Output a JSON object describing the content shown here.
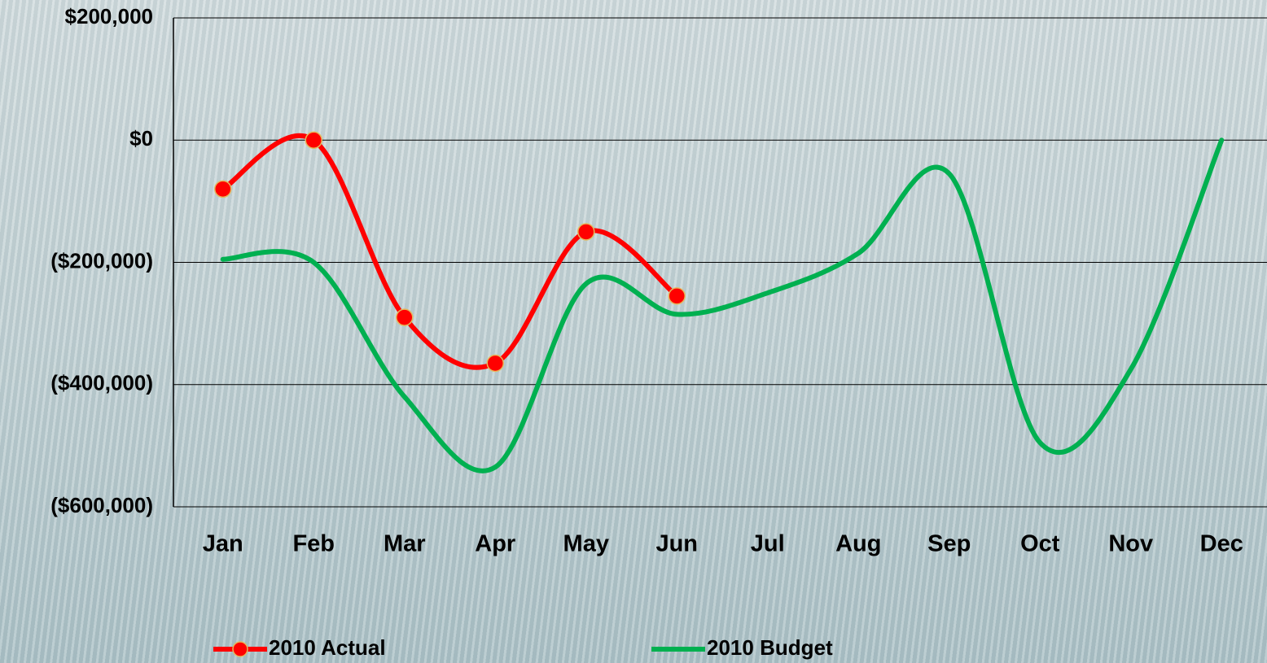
{
  "chart_data": {
    "type": "line",
    "categories": [
      "Jan",
      "Feb",
      "Mar",
      "Apr",
      "May",
      "Jun",
      "Jul",
      "Aug",
      "Sep",
      "Oct",
      "Nov",
      "Dec"
    ],
    "series": [
      {
        "name": "2010 Actual",
        "color": "#ff0000",
        "values": [
          -80000,
          0,
          -290000,
          -365000,
          -150000,
          -255000,
          null,
          null,
          null,
          null,
          null,
          null
        ]
      },
      {
        "name": "2010 Budget",
        "color": "#00b050",
        "values": [
          -195000,
          -200000,
          -420000,
          -535000,
          -235000,
          -285000,
          -250000,
          -185000,
          -55000,
          -495000,
          -375000,
          0
        ]
      }
    ],
    "ylim": [
      -600000,
      200000
    ],
    "yticks": [
      {
        "value": 200000,
        "label": "$200,000"
      },
      {
        "value": 0,
        "label": "$0"
      },
      {
        "value": -200000,
        "label": "($200,000)"
      },
      {
        "value": -400000,
        "label": "($400,000)"
      },
      {
        "value": -600000,
        "label": "($600,000)"
      }
    ],
    "grid": true
  }
}
